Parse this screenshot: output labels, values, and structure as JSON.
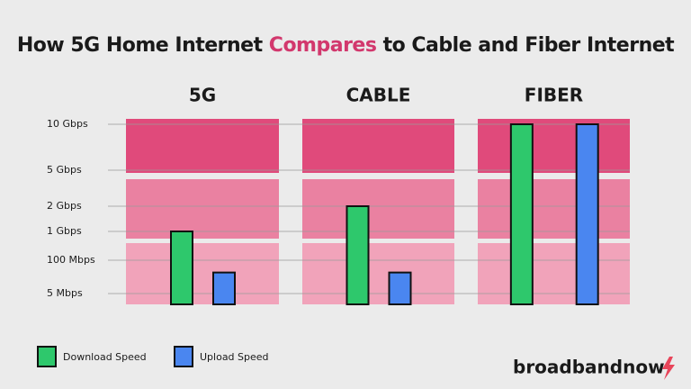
{
  "title": [
    "How 5G Home Internet",
    "Compares",
    "to Cable and Fiber Internet"
  ],
  "chart_data": {
    "type": "bar",
    "categories": [
      "5G",
      "CABLE",
      "FIBER"
    ],
    "series": [
      {
        "name": "Download Speed",
        "color": "#2ec86c",
        "values": [
          1000,
          2000,
          10000
        ]
      },
      {
        "name": "Upload Speed",
        "color": "#4a86f0",
        "values": [
          65,
          65,
          10000
        ]
      }
    ],
    "ylim": [
      0,
      10000
    ],
    "yticks": [
      {
        "value": 5,
        "label": "5 Mbps"
      },
      {
        "value": 100,
        "label": "100 Mbps"
      },
      {
        "value": 1000,
        "label": "1 Gbps"
      },
      {
        "value": 2000,
        "label": "2 Gbps"
      },
      {
        "value": 5000,
        "label": "5 Gbps"
      },
      {
        "value": 10000,
        "label": "10 Gbps"
      }
    ],
    "grid": true
  },
  "brand": "broadbandnow"
}
